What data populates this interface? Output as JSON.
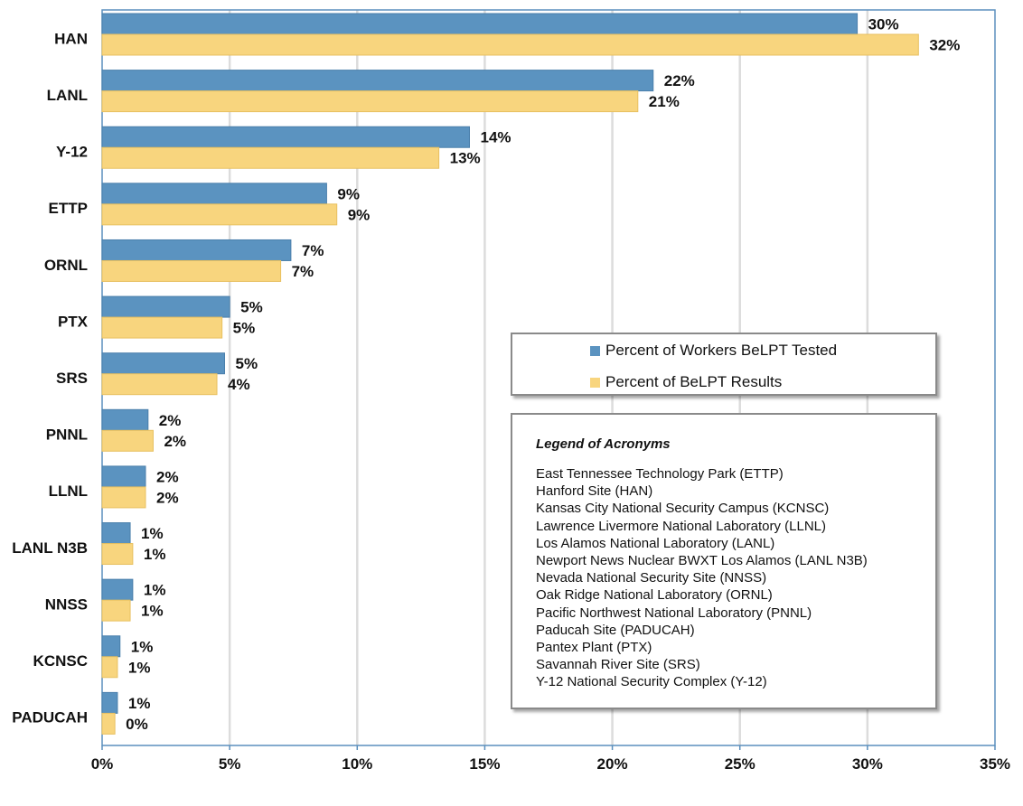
{
  "chart_data": {
    "type": "bar",
    "orientation": "horizontal",
    "categories": [
      "HAN",
      "LANL",
      "Y-12",
      "ETTP",
      "ORNL",
      "PTX",
      "SRS",
      "PNNL",
      "LLNL",
      "LANL N3B",
      "NNSS",
      "KCNSC",
      "PADUCAH"
    ],
    "series": [
      {
        "name": "Percent of Workers BeLPT Tested",
        "color": "#5b93c0",
        "values": [
          29.6,
          21.6,
          14.4,
          8.8,
          7.4,
          5.0,
          4.8,
          1.8,
          1.7,
          1.1,
          1.2,
          0.7,
          0.6
        ],
        "labels": [
          "30%",
          "22%",
          "14%",
          "9%",
          "7%",
          "5%",
          "5%",
          "2%",
          "2%",
          "1%",
          "1%",
          "1%",
          "1%"
        ]
      },
      {
        "name": "Percent of BeLPT Results",
        "color": "#f8d57e",
        "values": [
          32.0,
          21.0,
          13.2,
          9.2,
          7.0,
          4.7,
          4.5,
          2.0,
          1.7,
          1.2,
          1.1,
          0.6,
          0.5
        ],
        "labels": [
          "32%",
          "21%",
          "13%",
          "9%",
          "7%",
          "5%",
          "4%",
          "2%",
          "2%",
          "1%",
          "1%",
          "1%",
          "0%"
        ]
      }
    ],
    "xlim": [
      0,
      35
    ],
    "xticks": [
      0,
      5,
      10,
      15,
      20,
      25,
      30,
      35
    ],
    "xtick_labels": [
      "0%",
      "5%",
      "10%",
      "15%",
      "20%",
      "25%",
      "30%",
      "35%"
    ],
    "grid": "vertical",
    "legend_position": "center-right"
  },
  "acronym_legend": {
    "title": "Legend of Acronyms",
    "items": [
      "East Tennessee Technology Park (ETTP)",
      "Hanford Site (HAN)",
      "Kansas City National Security Campus (KCNSC)",
      "Lawrence Livermore National Laboratory (LLNL)",
      "Los Alamos National Laboratory (LANL)",
      "Newport News Nuclear BWXT Los Alamos (LANL N3B)",
      "Nevada National Security Site (NNSS)",
      "Oak Ridge National Laboratory (ORNL)",
      "Pacific Northwest National Laboratory (PNNL)",
      "Paducah Site (PADUCAH)",
      "Pantex Plant (PTX)",
      "Savannah River Site (SRS)",
      "Y-12 National Security Complex (Y-12)"
    ]
  }
}
